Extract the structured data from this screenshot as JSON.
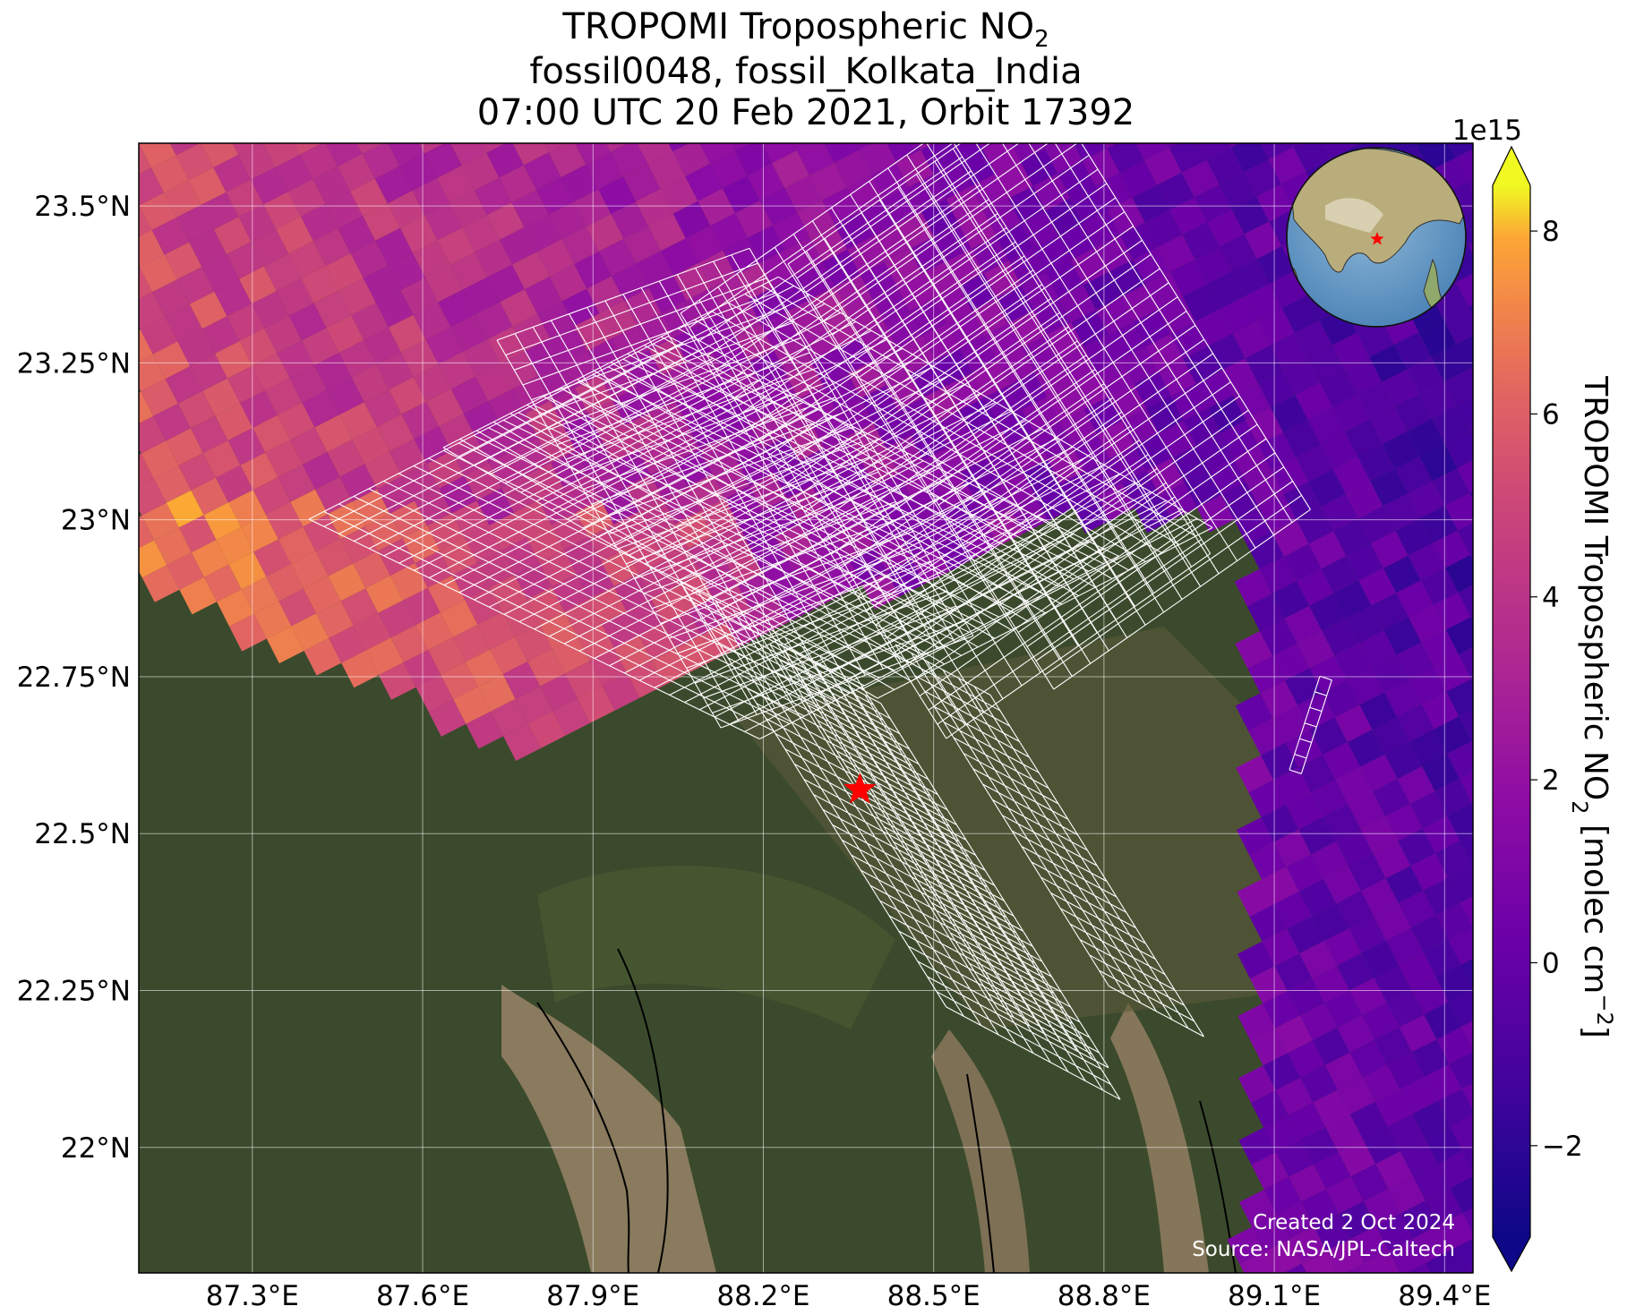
{
  "title": {
    "line1": "TROPOMI Tropospheric NO",
    "line1_sub": "2",
    "line2": "fossil0048, fossil_Kolkata_India",
    "line3": "07:00 UTC 20 Feb 2021, Orbit 17392"
  },
  "map": {
    "lat_range": [
      21.8,
      23.6
    ],
    "lon_range": [
      87.1,
      89.45
    ],
    "lat_ticks": [
      {
        "value": 23.5,
        "label": "23.5°N"
      },
      {
        "value": 23.25,
        "label": "23.25°N"
      },
      {
        "value": 23.0,
        "label": "23°N"
      },
      {
        "value": 22.75,
        "label": "22.75°N"
      },
      {
        "value": 22.5,
        "label": "22.5°N"
      },
      {
        "value": 22.25,
        "label": "22.25°N"
      },
      {
        "value": 22.0,
        "label": "22°N"
      }
    ],
    "lon_ticks": [
      {
        "value": 87.3,
        "label": "87.3°E"
      },
      {
        "value": 87.6,
        "label": "87.6°E"
      },
      {
        "value": 87.9,
        "label": "87.9°E"
      },
      {
        "value": 88.2,
        "label": "88.2°E"
      },
      {
        "value": 88.5,
        "label": "88.5°E"
      },
      {
        "value": 88.8,
        "label": "88.8°E"
      },
      {
        "value": 89.1,
        "label": "89.1°E"
      },
      {
        "value": 89.4,
        "label": "89.4°E"
      }
    ],
    "site_marker": {
      "lat": 22.57,
      "lon": 88.37,
      "color": "#ff0000",
      "shape": "star"
    },
    "gridlines": true,
    "inset_globe": {
      "position": "top-right",
      "marker_color": "#ff0000"
    }
  },
  "colorbar": {
    "label": "TROPOMI Tropospheric NO",
    "label_sub": "2",
    "label_units": " [molec cm",
    "label_sup": "−2",
    "label_end": "]",
    "exponent": "1e15",
    "range": [
      -3,
      8.5
    ],
    "ticks": [
      {
        "value": 8,
        "label": "8"
      },
      {
        "value": 6,
        "label": "6"
      },
      {
        "value": 4,
        "label": "4"
      },
      {
        "value": 2,
        "label": "2"
      },
      {
        "value": 0,
        "label": "0"
      },
      {
        "value": -2,
        "label": "−2"
      }
    ],
    "colormap": "plasma",
    "extend": "both"
  },
  "credits": {
    "created": "Created 2 Oct 2024",
    "source": "Source: NASA/JPL-Caltech"
  }
}
